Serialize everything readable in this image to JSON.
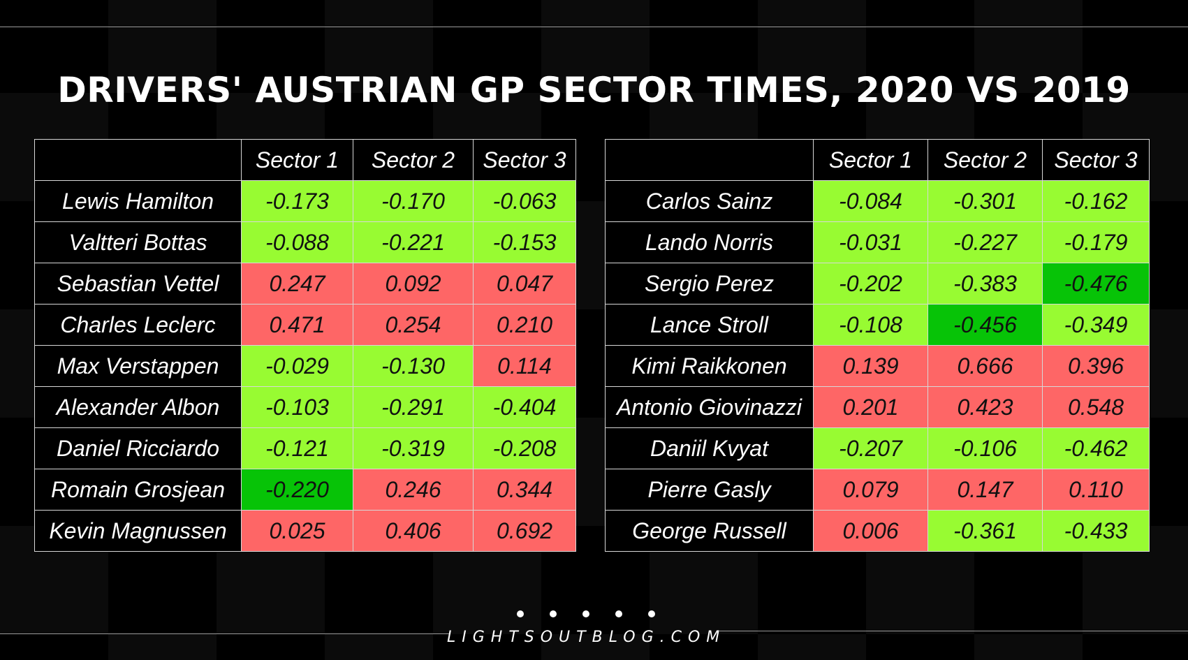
{
  "chart_data": {
    "type": "table",
    "title": "DRIVERS' AUSTRIAN GP SECTOR TIMES, 2020 VS 2019",
    "columns": [
      "",
      "Sector 1",
      "Sector 2",
      "Sector 3"
    ],
    "colors": {
      "slower": "#fe6666",
      "faster": "#98fb32",
      "fastest": "#07c307"
    },
    "tables": [
      {
        "rows": [
          {
            "driver": "Lewis Hamilton",
            "values": [
              "-0.173",
              "-0.170",
              "-0.063"
            ],
            "colors": [
              "lime",
              "lime",
              "lime"
            ]
          },
          {
            "driver": "Valtteri Bottas",
            "values": [
              "-0.088",
              "-0.221",
              "-0.153"
            ],
            "colors": [
              "lime",
              "lime",
              "lime"
            ]
          },
          {
            "driver": "Sebastian Vettel",
            "values": [
              "0.247",
              "0.092",
              "0.047"
            ],
            "colors": [
              "red",
              "red",
              "red"
            ]
          },
          {
            "driver": "Charles Leclerc",
            "values": [
              "0.471",
              "0.254",
              "0.210"
            ],
            "colors": [
              "red",
              "red",
              "red"
            ]
          },
          {
            "driver": "Max Verstappen",
            "values": [
              "-0.029",
              "-0.130",
              "0.114"
            ],
            "colors": [
              "lime",
              "lime",
              "red"
            ]
          },
          {
            "driver": "Alexander Albon",
            "values": [
              "-0.103",
              "-0.291",
              "-0.404"
            ],
            "colors": [
              "lime",
              "lime",
              "lime"
            ]
          },
          {
            "driver": "Daniel Ricciardo",
            "values": [
              "-0.121",
              "-0.319",
              "-0.208"
            ],
            "colors": [
              "lime",
              "lime",
              "lime"
            ]
          },
          {
            "driver": "Romain Grosjean",
            "values": [
              "-0.220",
              "0.246",
              "0.344"
            ],
            "colors": [
              "green",
              "red",
              "red"
            ]
          },
          {
            "driver": "Kevin Magnussen",
            "values": [
              "0.025",
              "0.406",
              "0.692"
            ],
            "colors": [
              "red",
              "red",
              "red"
            ]
          }
        ]
      },
      {
        "rows": [
          {
            "driver": "Carlos Sainz",
            "values": [
              "-0.084",
              "-0.301",
              "-0.162"
            ],
            "colors": [
              "lime",
              "lime",
              "lime"
            ]
          },
          {
            "driver": "Lando Norris",
            "values": [
              "-0.031",
              "-0.227",
              "-0.179"
            ],
            "colors": [
              "lime",
              "lime",
              "lime"
            ]
          },
          {
            "driver": "Sergio Perez",
            "values": [
              "-0.202",
              "-0.383",
              "-0.476"
            ],
            "colors": [
              "lime",
              "lime",
              "green"
            ]
          },
          {
            "driver": "Lance Stroll",
            "values": [
              "-0.108",
              "-0.456",
              "-0.349"
            ],
            "colors": [
              "lime",
              "green",
              "lime"
            ]
          },
          {
            "driver": "Kimi Raikkonen",
            "values": [
              "0.139",
              "0.666",
              "0.396"
            ],
            "colors": [
              "red",
              "red",
              "red"
            ]
          },
          {
            "driver": "Antonio Giovinazzi",
            "values": [
              "0.201",
              "0.423",
              "0.548"
            ],
            "colors": [
              "red",
              "red",
              "red"
            ]
          },
          {
            "driver": "Daniil Kvyat",
            "values": [
              "-0.207",
              "-0.106",
              "-0.462"
            ],
            "colors": [
              "lime",
              "lime",
              "lime"
            ]
          },
          {
            "driver": "Pierre Gasly",
            "values": [
              "0.079",
              "0.147",
              "0.110"
            ],
            "colors": [
              "red",
              "red",
              "red"
            ]
          },
          {
            "driver": "George Russell",
            "values": [
              "0.006",
              "-0.361",
              "-0.433"
            ],
            "colors": [
              "red",
              "lime",
              "lime"
            ]
          }
        ]
      }
    ]
  },
  "footer": {
    "site": "LIGHTSOUTBLOG.COM"
  }
}
